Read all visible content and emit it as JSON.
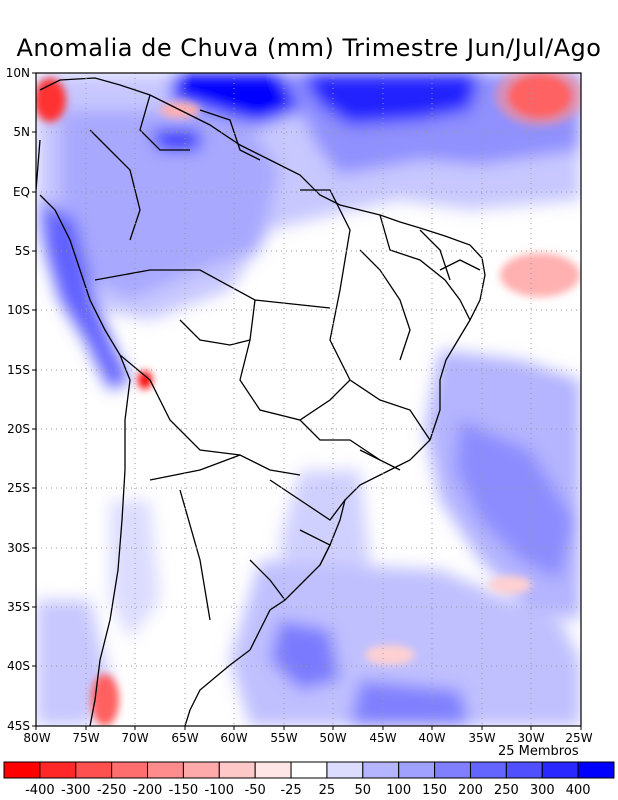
{
  "title": "Anomalia de Chuva (mm) Trimestre Jun/Jul/Ago",
  "members_label": "25 Membros",
  "lat_ticks": [
    "10N",
    "5N",
    "EQ",
    "5S",
    "10S",
    "15S",
    "20S",
    "25S",
    "30S",
    "35S",
    "40S",
    "45S"
  ],
  "lon_ticks": [
    "80W",
    "75W",
    "70W",
    "65W",
    "60W",
    "55W",
    "50W",
    "45W",
    "40W",
    "35W",
    "30W",
    "25W"
  ],
  "colorbar": {
    "labels": [
      "-400",
      "-300",
      "-250",
      "-200",
      "-150",
      "-100",
      "-50",
      "-25",
      "25",
      "50",
      "100",
      "150",
      "200",
      "250",
      "300",
      "400"
    ],
    "colors": [
      "#ff0000",
      "#ff2828",
      "#ff5050",
      "#ff6e6e",
      "#ff8c8c",
      "#ffaaaa",
      "#ffc8c8",
      "#ffe6e6",
      "#ffffff",
      "#dcdcff",
      "#b4b4ff",
      "#a0a0ff",
      "#8080ff",
      "#6464ff",
      "#5050ff",
      "#2828ff",
      "#0000ff"
    ]
  }
}
